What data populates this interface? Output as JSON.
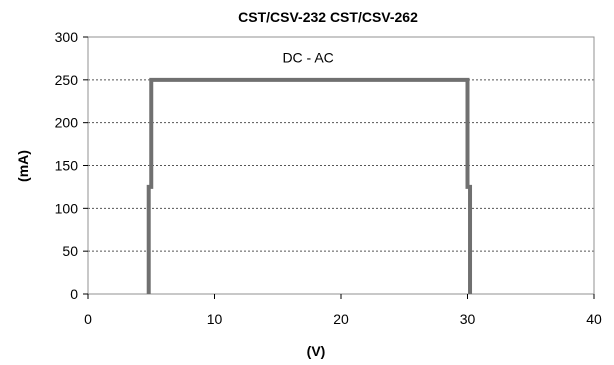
{
  "chart_data": {
    "type": "line",
    "title": "CST/CSV-232 CST/CSV-262",
    "xlabel": "(V)",
    "ylabel": "(mA)",
    "xlim": [
      0,
      40
    ],
    "ylim": [
      0,
      300
    ],
    "xticks": [
      0,
      10,
      20,
      30,
      40
    ],
    "yticks": [
      0,
      50,
      100,
      150,
      200,
      250,
      300
    ],
    "grid": "horizontal dotted",
    "annotations": [
      {
        "text": "DC - AC",
        "x": 17.4,
        "y": 270
      }
    ],
    "series": [
      {
        "x": [
          4.8,
          4.8,
          5.0,
          5.0,
          30.0,
          30.0,
          30.2,
          30.2
        ],
        "y": [
          0,
          125,
          125,
          250,
          250,
          125,
          125,
          0
        ],
        "color": "#707070"
      }
    ]
  }
}
